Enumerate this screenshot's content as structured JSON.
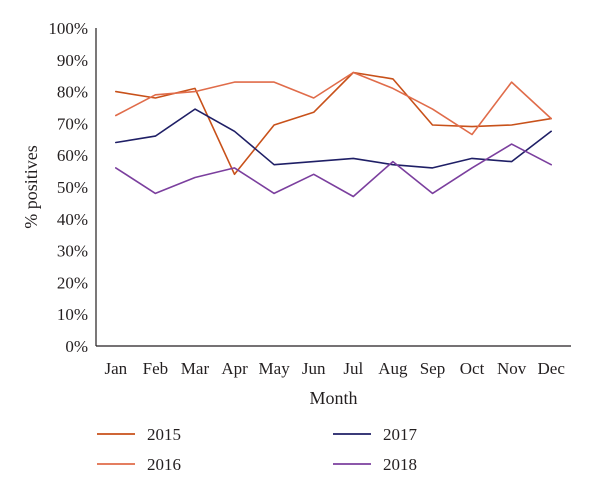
{
  "chart_data": {
    "type": "line",
    "xlabel": "Month",
    "ylabel": "% positives",
    "categories": [
      "Jan",
      "Feb",
      "Mar",
      "Apr",
      "May",
      "Jun",
      "Jul",
      "Aug",
      "Sep",
      "Oct",
      "Nov",
      "Dec"
    ],
    "ylim": [
      0,
      100
    ],
    "yticks": [
      "0%",
      "10%",
      "20%",
      "30%",
      "40%",
      "50%",
      "60%",
      "70%",
      "80%",
      "90%",
      "100%"
    ],
    "grid": false,
    "legend_position": "bottom",
    "series": [
      {
        "name": "2015",
        "color": "#c8511a",
        "values": [
          80,
          78,
          81,
          54,
          69.5,
          73.5,
          86,
          84,
          69.5,
          69,
          69.5,
          71.5
        ]
      },
      {
        "name": "2016",
        "color": "#e06c4a",
        "values": [
          72.5,
          79,
          80,
          83,
          83,
          78,
          86,
          81,
          74.5,
          66.5,
          83,
          71.5
        ]
      },
      {
        "name": "2017",
        "color": "#1f1f66",
        "values": [
          64,
          66,
          74.5,
          67.5,
          57,
          58,
          59,
          57,
          56,
          59,
          58,
          67.5
        ]
      },
      {
        "name": "2018",
        "color": "#7b3f9e",
        "values": [
          56,
          48,
          53,
          56,
          48,
          54,
          47,
          58,
          48,
          56,
          63.5,
          57
        ]
      }
    ]
  }
}
